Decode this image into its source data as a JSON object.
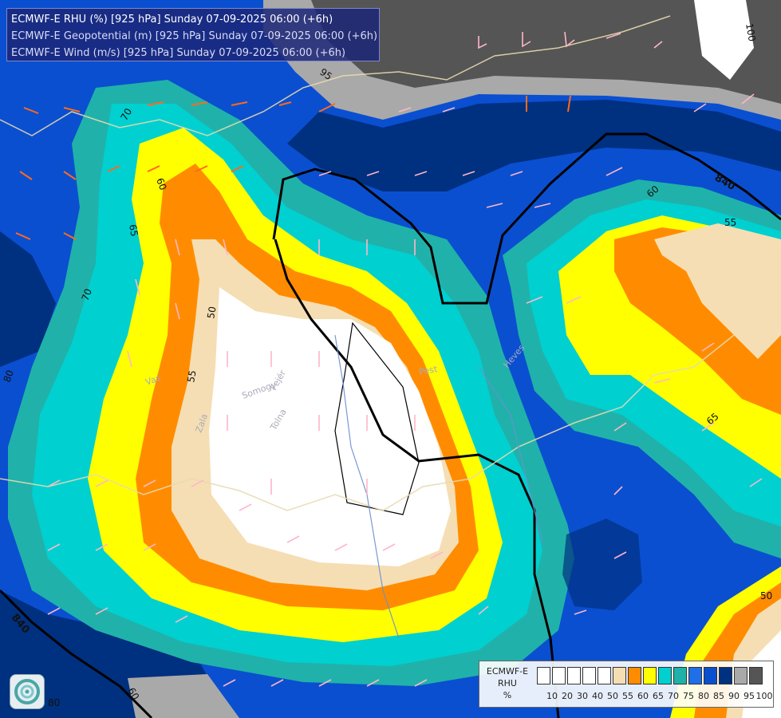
{
  "header": {
    "line1": "ECMWF-E RHU (%) [925 hPa] Sunday 07-09-2025 06:00 (+6h)",
    "line2": "ECMWF-E Geopotential (m) [925 hPa] Sunday 07-09-2025 06:00 (+6h)",
    "line3": "ECMWF-E Wind (m/s) [925 hPa] Sunday 07-09-2025 06:00 (+6h)"
  },
  "legend": {
    "title_line1": "ECMWF-E",
    "title_line2": "RHU",
    "unit": "%",
    "ticks": [
      "10",
      "20",
      "30",
      "40",
      "50",
      "55",
      "60",
      "65",
      "70",
      "75",
      "80",
      "85",
      "90",
      "95",
      "100"
    ],
    "colors": [
      "#ffffff",
      "#ffffff",
      "#ffffff",
      "#ffffff",
      "#ffffff",
      "#f5deb3",
      "#ff8c00",
      "#ffff00",
      "#00d0d0",
      "#20b2aa",
      "#1e6fe8",
      "#0a4fd0",
      "#003080",
      "#a9a9a9",
      "#555555"
    ]
  },
  "contour_labels": {
    "l95": "95",
    "l100": "100",
    "l70a": "70",
    "l60a": "60",
    "l65a": "65",
    "l70b": "70",
    "l80a": "80",
    "l55a": "55",
    "l50a": "50",
    "l60b": "60",
    "l55b": "55",
    "l65b": "65",
    "l50b": "50",
    "l60c": "60",
    "l80b": "80"
  },
  "geopotential_labels": {
    "g840a": "840",
    "g840b": "840"
  },
  "place_labels": {
    "vas": "Vas",
    "zala": "Zala",
    "somogy": "Somogy",
    "fejer": "Fejér",
    "tolna": "Tolna",
    "pest": "Pest",
    "heves": "Heves"
  }
}
